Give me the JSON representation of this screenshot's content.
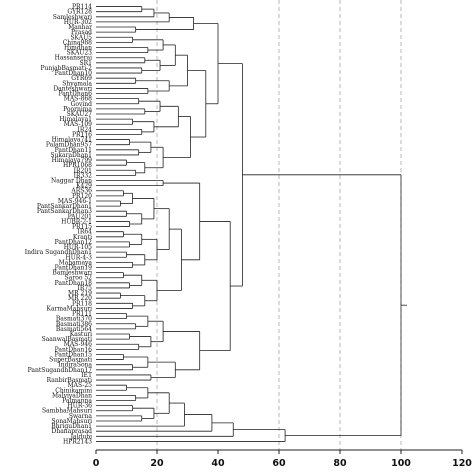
{
  "chart_data": {
    "type": "dendrogram",
    "title": "",
    "xlabel": "",
    "ylabel": "",
    "x_ticks": [
      0,
      20,
      40,
      60,
      80,
      100,
      120
    ],
    "xlim": [
      0,
      120
    ],
    "grid": "vertical dashed lines at 20, 60, 80, 100",
    "leaves": [
      "PR114",
      "GYR128",
      "Samleshwari",
      "HUR-302",
      "Manhar",
      "Prasad",
      "SKAU5",
      "China988",
      "Himdhan",
      "SKAU23",
      "Hassanserai",
      "SR1",
      "PunjabBasmati-2",
      "PantDhan10",
      "GYR69",
      "Shyamala",
      "Danteshwari",
      "PantDhan6",
      "MAS-868",
      "Govind",
      "Poornima",
      "SKAU27",
      "Himalaya1",
      "MAS-109",
      "IR24",
      "PR116",
      "Himalaya741",
      "PalamDhan957",
      "PantDhan11",
      "SukaraDhan1",
      "Himalaya799",
      "HPR1068",
      "IR201",
      "IR332",
      "Naggar Dhan",
      "K429",
      "ARS36",
      "PR120",
      "MAS-946-1",
      "PantSankarDhan1",
      "PantSankarDhan3",
      "PAU201",
      "HUBR-2-1",
      "PR115",
      "IR64",
      "Kranti",
      "PantDhan12",
      "HUR-105",
      "Indira SugandhDhan1",
      "HUR-4-3",
      "Mahamaya",
      "PantDhan19",
      "Bamleshwari",
      "Saroo 52",
      "PantDhan18",
      "IR75",
      "MR 219",
      "MR 220",
      "PR118",
      "KarmaMahsuri",
      "PR111",
      "Basmati370",
      "Basmati386",
      "Basmati564",
      "Kasturi",
      "SaanwalBasmati",
      "MAS-946",
      "PantDhan16",
      "PantDhan15",
      "SuperBasmati",
      "IndiraSona",
      "PantSugandhDhan17",
      "IET",
      "RanbirBasmati",
      "MAS-25",
      "Chinikamini",
      "MalviyaDhan",
      "Palmanna",
      "HUR-36",
      "SambhaMahsuri",
      "Swarna",
      "SonaMahsuri",
      "BhriguDhan1",
      "Dhanaprasad",
      "Jaldubi",
      "HPR2143"
    ],
    "merges": [
      {
        "a": 0,
        "b": 1,
        "height": 15
      },
      {
        "a": 86,
        "b": 2,
        "height": 19
      },
      {
        "a": 87,
        "b": 3,
        "height": 24
      },
      {
        "a": 4,
        "b": 5,
        "height": 13
      },
      {
        "a": 88,
        "b": 89,
        "height": 32
      },
      {
        "a": 6,
        "b": 7,
        "height": 12
      },
      {
        "a": 8,
        "b": 9,
        "height": 17
      },
      {
        "a": 91,
        "b": 92,
        "height": 22
      },
      {
        "a": 10,
        "b": 11,
        "height": 16
      },
      {
        "a": 12,
        "b": 13,
        "height": 15
      },
      {
        "a": 94,
        "b": 95,
        "height": 21
      },
      {
        "a": 93,
        "b": 96,
        "height": 26
      },
      {
        "a": 14,
        "b": 15,
        "height": 13
      },
      {
        "a": 16,
        "b": 17,
        "height": 17
      },
      {
        "a": 98,
        "b": 99,
        "height": 24
      },
      {
        "a": 97,
        "b": 100,
        "height": 30
      },
      {
        "a": 18,
        "b": 19,
        "height": 14
      },
      {
        "a": 20,
        "b": 21,
        "height": 16
      },
      {
        "a": 102,
        "b": 103,
        "height": 21
      },
      {
        "a": 22,
        "b": 23,
        "height": 12
      },
      {
        "a": 24,
        "b": 25,
        "height": 15
      },
      {
        "a": 105,
        "b": 106,
        "height": 19
      },
      {
        "a": 104,
        "b": 107,
        "height": 27
      },
      {
        "a": 26,
        "b": 27,
        "height": 11
      },
      {
        "a": 28,
        "b": 29,
        "height": 14
      },
      {
        "a": 109,
        "b": 110,
        "height": 18
      },
      {
        "a": 30,
        "b": 31,
        "height": 10
      },
      {
        "a": 32,
        "b": 33,
        "height": 13
      },
      {
        "a": 112,
        "b": 113,
        "height": 16
      },
      {
        "a": 111,
        "b": 114,
        "height": 22
      },
      {
        "a": 108,
        "b": 115,
        "height": 31
      },
      {
        "a": 101,
        "b": 116,
        "height": 36
      },
      {
        "a": 90,
        "b": 117,
        "height": 40
      },
      {
        "a": 34,
        "b": 35,
        "height": 22
      },
      {
        "a": 36,
        "b": 37,
        "height": 9
      },
      {
        "a": 38,
        "b": 39,
        "height": 8
      },
      {
        "a": 120,
        "b": 121,
        "height": 12
      },
      {
        "a": 40,
        "b": 41,
        "height": 10
      },
      {
        "a": 42,
        "b": 43,
        "height": 11
      },
      {
        "a": 123,
        "b": 124,
        "height": 15
      },
      {
        "a": 122,
        "b": 125,
        "height": 19
      },
      {
        "a": 44,
        "b": 45,
        "height": 9
      },
      {
        "a": 46,
        "b": 47,
        "height": 11
      },
      {
        "a": 127,
        "b": 128,
        "height": 15
      },
      {
        "a": 48,
        "b": 49,
        "height": 10
      },
      {
        "a": 50,
        "b": 51,
        "height": 12
      },
      {
        "a": 130,
        "b": 131,
        "height": 16
      },
      {
        "a": 129,
        "b": 132,
        "height": 20
      },
      {
        "a": 126,
        "b": 133,
        "height": 24
      },
      {
        "a": 52,
        "b": 53,
        "height": 9
      },
      {
        "a": 54,
        "b": 55,
        "height": 11
      },
      {
        "a": 135,
        "b": 136,
        "height": 15
      },
      {
        "a": 56,
        "b": 57,
        "height": 8
      },
      {
        "a": 58,
        "b": 59,
        "height": 12
      },
      {
        "a": 138,
        "b": 139,
        "height": 16
      },
      {
        "a": 137,
        "b": 140,
        "height": 20
      },
      {
        "a": 134,
        "b": 141,
        "height": 28
      },
      {
        "a": 119,
        "b": 142,
        "height": 34
      },
      {
        "a": 60,
        "b": 61,
        "height": 10
      },
      {
        "a": 62,
        "b": 63,
        "height": 13
      },
      {
        "a": 144,
        "b": 145,
        "height": 17
      },
      {
        "a": 64,
        "b": 65,
        "height": 11
      },
      {
        "a": 66,
        "b": 67,
        "height": 14
      },
      {
        "a": 147,
        "b": 148,
        "height": 18
      },
      {
        "a": 146,
        "b": 149,
        "height": 22
      },
      {
        "a": 68,
        "b": 69,
        "height": 9
      },
      {
        "a": 70,
        "b": 71,
        "height": 12
      },
      {
        "a": 151,
        "b": 152,
        "height": 17
      },
      {
        "a": 72,
        "b": 73,
        "height": 18
      },
      {
        "a": 153,
        "b": 154,
        "height": 26
      },
      {
        "a": 150,
        "b": 155,
        "height": 34
      },
      {
        "a": 143,
        "b": 156,
        "height": 44
      },
      {
        "a": 118,
        "b": 157,
        "height": 48
      },
      {
        "a": 74,
        "b": 75,
        "height": 10
      },
      {
        "a": 76,
        "b": 77,
        "height": 13
      },
      {
        "a": 159,
        "b": 160,
        "height": 17
      },
      {
        "a": 78,
        "b": 79,
        "height": 12
      },
      {
        "a": 80,
        "b": 81,
        "height": 15
      },
      {
        "a": 162,
        "b": 163,
        "height": 19
      },
      {
        "a": 161,
        "b": 164,
        "height": 24
      },
      {
        "a": 165,
        "b": 82,
        "height": 29
      },
      {
        "a": 166,
        "b": 83,
        "height": 38
      },
      {
        "a": 167,
        "b": 84,
        "height": 45
      },
      {
        "a": 168,
        "b": 85,
        "height": 62
      },
      {
        "a": 158,
        "b": 169,
        "height": 100
      }
    ]
  }
}
